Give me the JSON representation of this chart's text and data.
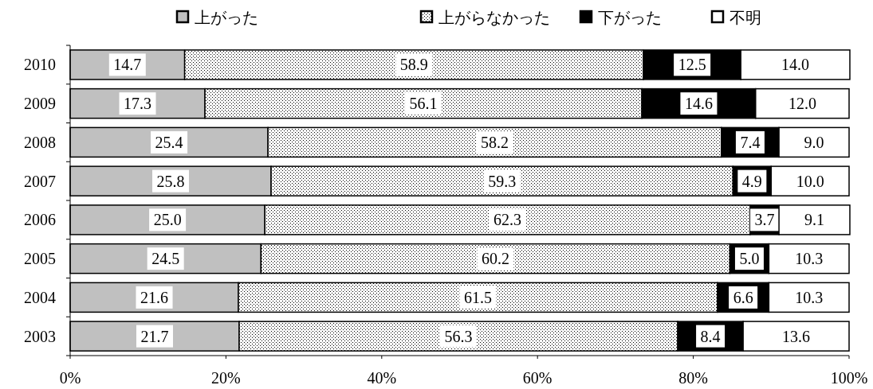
{
  "chart_data": {
    "type": "bar",
    "orientation": "horizontal",
    "stacked": true,
    "legend": "top",
    "grid": false,
    "categories": [
      "2010",
      "2009",
      "2008",
      "2007",
      "2006",
      "2005",
      "2004",
      "2003"
    ],
    "series": [
      {
        "name": "上がった",
        "color": "#c0c0c0",
        "values": [
          14.7,
          17.3,
          25.4,
          25.8,
          25.0,
          24.5,
          21.6,
          21.7
        ],
        "value_labels": [
          "14.7",
          "17.3",
          "25.4",
          "25.8",
          "25.0",
          "24.5",
          "21.6",
          "21.7"
        ]
      },
      {
        "name": "上がらなかった",
        "color": "#000000",
        "values": [
          58.9,
          56.1,
          58.2,
          59.3,
          62.3,
          60.2,
          61.5,
          56.3
        ],
        "value_labels": [
          "58.9",
          "56.1",
          "58.2",
          "59.3",
          "62.3",
          "60.2",
          "61.5",
          "56.3"
        ]
      },
      {
        "name": "下がった",
        "color": "#000000",
        "values": [
          12.5,
          14.6,
          7.4,
          4.9,
          3.7,
          5.0,
          6.6,
          8.4
        ],
        "value_labels": [
          "12.5",
          "14.6",
          "7.4",
          "4.9",
          "3.7",
          "5.0",
          "6.6",
          "8.4"
        ]
      },
      {
        "name": "不明",
        "color": "#ffffff",
        "values": [
          14.0,
          12.0,
          9.0,
          10.0,
          9.1,
          10.3,
          10.3,
          13.6
        ],
        "value_labels": [
          "14.0",
          "12.0",
          "9.0",
          "10.0",
          "9.1",
          "10.3",
          "10.3",
          "13.6"
        ]
      }
    ],
    "xlim": [
      0,
      100
    ],
    "xticks": [
      {
        "value": 0,
        "label": "0%"
      },
      {
        "value": 20,
        "label": "20%"
      },
      {
        "value": 40,
        "label": "40%"
      },
      {
        "value": 60,
        "label": "60%"
      },
      {
        "value": 80,
        "label": "80%"
      },
      {
        "value": 100,
        "label": "100%"
      }
    ]
  }
}
